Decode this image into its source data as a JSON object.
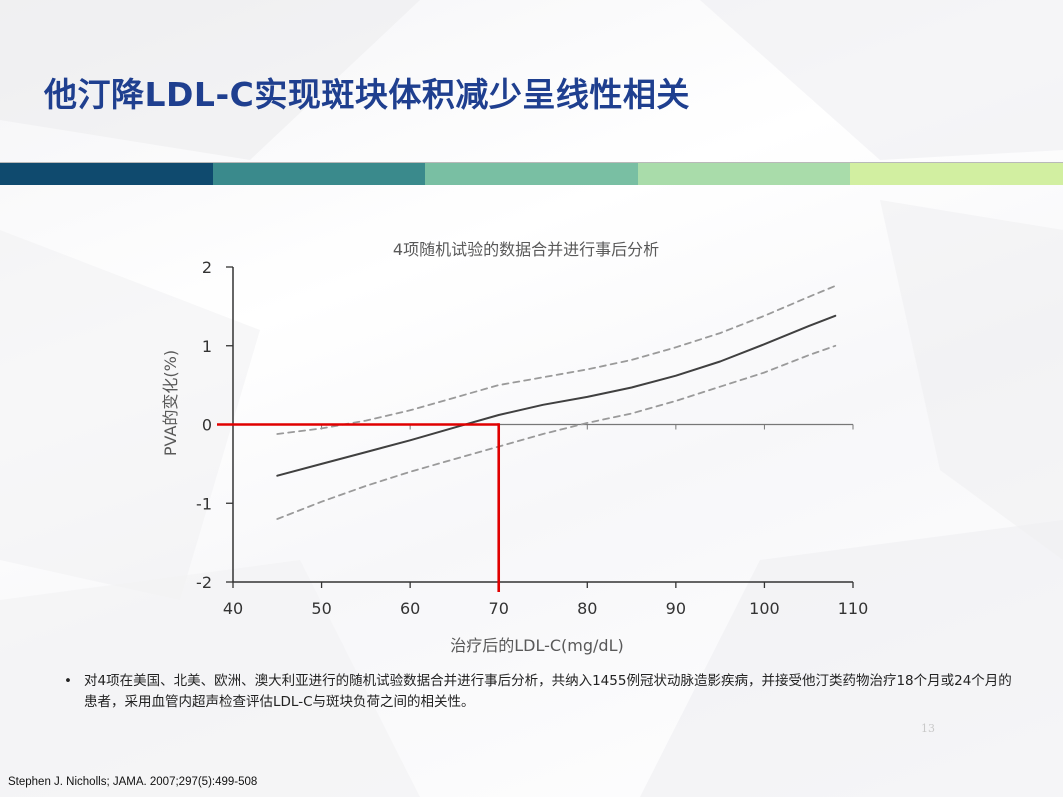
{
  "slide": {
    "title": "他汀降LDL-C实现斑块体积减少呈线性相关",
    "band_colors": [
      "#0f4a6e",
      "#3a8a8c",
      "#79bfa3",
      "#a9dcaa",
      "#d2efa1"
    ],
    "bullet": "对4项在美国、北美、欧洲、澳大利亚进行的随机试验数据合并进行事后分析，共纳入1455例冠状动脉造影疾病，并接受他汀类药物治疗18个月或24个月的患者，采用血管内超声检查评估LDL-C与斑块负荷之间的相关性。",
    "page_number": "13",
    "citation": "Stephen J. Nicholls; JAMA. 2007;297(5):499-508"
  },
  "chart_data": {
    "type": "line",
    "title": "4项随机试验的数据合并进行事后分析",
    "xlabel": "治疗后的LDL-C(mg/dL)",
    "ylabel": "PVA的变化(%)",
    "xlim": [
      40,
      110
    ],
    "ylim": [
      -2,
      2
    ],
    "x_ticks": [
      40,
      50,
      60,
      70,
      80,
      90,
      100,
      110
    ],
    "y_ticks": [
      2,
      1,
      0,
      -1,
      -2
    ],
    "grid": false,
    "series": [
      {
        "role": "estimate",
        "style": "solid",
        "color": "#404040",
        "x": [
          45,
          50,
          55,
          60,
          65,
          70,
          75,
          80,
          85,
          90,
          95,
          100,
          105,
          108
        ],
        "y": [
          -0.65,
          -0.5,
          -0.35,
          -0.2,
          -0.04,
          0.12,
          0.25,
          0.35,
          0.47,
          0.62,
          0.8,
          1.02,
          1.25,
          1.38
        ]
      },
      {
        "role": "upper_ci",
        "style": "dashed",
        "color": "#9a9a9a",
        "x": [
          45,
          50,
          55,
          60,
          65,
          70,
          75,
          80,
          85,
          90,
          95,
          100,
          105,
          108
        ],
        "y": [
          -0.12,
          -0.05,
          0.05,
          0.18,
          0.34,
          0.5,
          0.6,
          0.7,
          0.82,
          0.98,
          1.16,
          1.38,
          1.62,
          1.76
        ]
      },
      {
        "role": "lower_ci",
        "style": "dashed",
        "color": "#9a9a9a",
        "x": [
          45,
          50,
          55,
          60,
          65,
          70,
          75,
          80,
          85,
          90,
          95,
          100,
          105,
          108
        ],
        "y": [
          -1.2,
          -0.98,
          -0.78,
          -0.6,
          -0.44,
          -0.28,
          -0.12,
          0.02,
          0.14,
          0.3,
          0.48,
          0.66,
          0.88,
          1.0
        ]
      }
    ],
    "annotation": {
      "color": "#e00000",
      "x": 70,
      "y": 0
    }
  }
}
